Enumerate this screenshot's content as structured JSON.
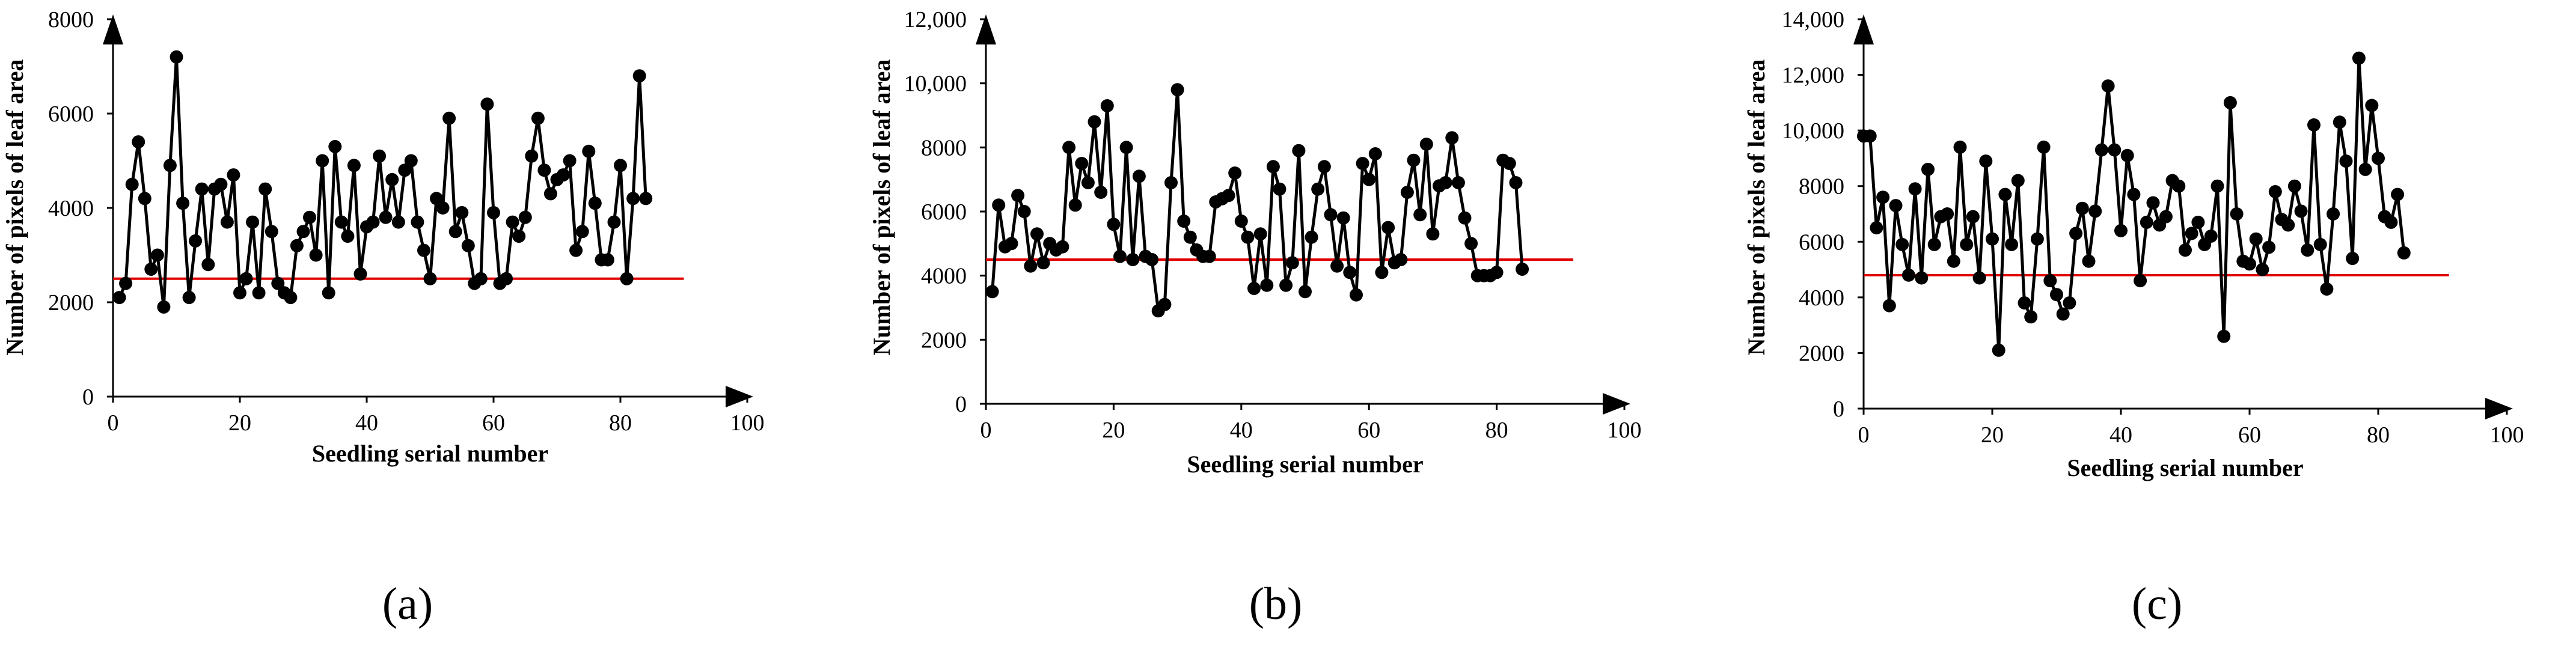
{
  "chart_data": [
    {
      "type": "line",
      "panel_label": "(a)",
      "xlabel": "Seedling serial number",
      "ylabel": "Number of pixels of leaf area",
      "xlim": [
        0,
        100
      ],
      "ylim": [
        0,
        8000
      ],
      "x_ticks": [
        0,
        20,
        40,
        60,
        80,
        100
      ],
      "x_tick_labels": [
        "0",
        "20",
        "40",
        "60",
        "80",
        "100"
      ],
      "y_ticks": [
        0,
        2000,
        4000,
        6000,
        8000
      ],
      "y_tick_labels": [
        "0",
        "2000",
        "4000",
        "6000",
        "8000"
      ],
      "threshold": 2500,
      "threshold_x_end": 90,
      "threshold_color": "#e00000",
      "series": [
        {
          "name": "pixels",
          "color": "#000000",
          "x": [
            1,
            2,
            3,
            4,
            5,
            6,
            7,
            8,
            9,
            10,
            11,
            12,
            13,
            14,
            15,
            16,
            17,
            18,
            19,
            20,
            21,
            22,
            23,
            24,
            25,
            26,
            27,
            28,
            29,
            30,
            31,
            32,
            33,
            34,
            35,
            36,
            37,
            38,
            39,
            40,
            41,
            42,
            43,
            44,
            45,
            46,
            47,
            48,
            49,
            50,
            51,
            52,
            53,
            54,
            55,
            56,
            57,
            58,
            59,
            60,
            61,
            62,
            63,
            64,
            65,
            66,
            67,
            68,
            69,
            70,
            71,
            72,
            73,
            74,
            75,
            76,
            77,
            78,
            79,
            80,
            81,
            82,
            83,
            84
          ],
          "values": [
            2100,
            2400,
            4500,
            5400,
            4200,
            2700,
            3000,
            1900,
            4900,
            7200,
            4100,
            2100,
            3300,
            4400,
            2800,
            4400,
            4500,
            3700,
            4700,
            2200,
            2500,
            3700,
            2200,
            4400,
            3500,
            2400,
            2200,
            2100,
            3200,
            3500,
            3800,
            3000,
            5000,
            2200,
            5300,
            3700,
            3400,
            4900,
            2600,
            3600,
            3700,
            5100,
            3800,
            4600,
            3700,
            4800,
            5000,
            3700,
            3100,
            2500,
            4200,
            4000,
            5900,
            3500,
            3900,
            3200,
            2400,
            2500,
            6200,
            3900,
            2400,
            2500,
            3700,
            3400,
            3800,
            5100,
            5900,
            4800,
            4300,
            4600,
            4700,
            5000,
            3100,
            3500,
            5200,
            4100,
            2900,
            2900,
            3700,
            4900,
            2500,
            4200,
            6800,
            4200
          ]
        }
      ]
    },
    {
      "type": "line",
      "panel_label": "(b)",
      "xlabel": "Seedling serial number",
      "ylabel": "Number of pixels of leaf area",
      "xlim": [
        0,
        100
      ],
      "ylim": [
        0,
        12000
      ],
      "x_ticks": [
        0,
        20,
        40,
        60,
        80,
        100
      ],
      "x_tick_labels": [
        "0",
        "20",
        "40",
        "60",
        "80",
        "100"
      ],
      "y_ticks": [
        0,
        2000,
        4000,
        6000,
        8000,
        10000,
        12000
      ],
      "y_tick_labels": [
        "0",
        "2000",
        "4000",
        "6000",
        "8000",
        "10,000",
        "12,000"
      ],
      "threshold": 4500,
      "threshold_x_end": 92,
      "threshold_color": "#e00000",
      "series": [
        {
          "name": "pixels",
          "color": "#000000",
          "x": [
            1,
            2,
            3,
            4,
            5,
            6,
            7,
            8,
            9,
            10,
            11,
            12,
            13,
            14,
            15,
            16,
            17,
            18,
            19,
            20,
            21,
            22,
            23,
            24,
            25,
            26,
            27,
            28,
            29,
            30,
            31,
            32,
            33,
            34,
            35,
            36,
            37,
            38,
            39,
            40,
            41,
            42,
            43,
            44,
            45,
            46,
            47,
            48,
            49,
            50,
            51,
            52,
            53,
            54,
            55,
            56,
            57,
            58,
            59,
            60,
            61,
            62,
            63,
            64,
            65,
            66,
            67,
            68,
            69,
            70,
            71,
            72,
            73,
            74,
            75,
            76,
            77,
            78,
            79,
            80,
            81,
            82,
            83,
            84
          ],
          "values": [
            3500,
            6200,
            4900,
            5000,
            6500,
            6000,
            4300,
            5300,
            4400,
            5000,
            4800,
            4900,
            8000,
            6200,
            7500,
            6900,
            8800,
            6600,
            9300,
            5600,
            4600,
            8000,
            4500,
            7100,
            4600,
            4500,
            2900,
            3100,
            6900,
            9800,
            5700,
            5200,
            4800,
            4600,
            4600,
            6300,
            6400,
            6500,
            7200,
            5700,
            5200,
            3600,
            5300,
            3700,
            7400,
            6700,
            3700,
            4400,
            7900,
            3500,
            5200,
            6700,
            7400,
            5900,
            4300,
            5800,
            4100,
            3400,
            7500,
            7000,
            7800,
            4100,
            5500,
            4400,
            4500,
            6600,
            7600,
            5900,
            8100,
            5300,
            6800,
            6900,
            8300,
            6900,
            5800,
            5000,
            4000,
            4000,
            4000,
            4100,
            7600,
            7500,
            6900,
            4200
          ]
        }
      ]
    },
    {
      "type": "line",
      "panel_label": "(c)",
      "xlabel": "Seedling serial number",
      "ylabel": "Number of pixels of leaf area",
      "xlim": [
        0,
        100
      ],
      "ylim": [
        0,
        14000
      ],
      "x_ticks": [
        0,
        20,
        40,
        60,
        80,
        100
      ],
      "x_tick_labels": [
        "0",
        "20",
        "40",
        "60",
        "80",
        "100"
      ],
      "y_ticks": [
        0,
        2000,
        4000,
        6000,
        8000,
        10000,
        12000,
        14000
      ],
      "y_tick_labels": [
        "0",
        "2000",
        "4000",
        "6000",
        "8000",
        "10,000",
        "12,000",
        "14,000"
      ],
      "threshold": 4800,
      "threshold_x_end": 91,
      "threshold_color": "#e00000",
      "series": [
        {
          "name": "pixels",
          "color": "#000000",
          "x": [
            0,
            1,
            2,
            3,
            4,
            5,
            6,
            7,
            8,
            9,
            10,
            11,
            12,
            13,
            14,
            15,
            16,
            17,
            18,
            19,
            20,
            21,
            22,
            23,
            24,
            25,
            26,
            27,
            28,
            29,
            30,
            31,
            32,
            33,
            34,
            35,
            36,
            37,
            38,
            39,
            40,
            41,
            42,
            43,
            44,
            45,
            46,
            47,
            48,
            49,
            50,
            51,
            52,
            53,
            54,
            55,
            56,
            57,
            58,
            59,
            60,
            61,
            62,
            63,
            64,
            65,
            66,
            67,
            68,
            69,
            70,
            71,
            72,
            73,
            74,
            75,
            76,
            77,
            78,
            79,
            80,
            81,
            82,
            83,
            84
          ],
          "values": [
            9800,
            9800,
            6500,
            7600,
            3700,
            7300,
            5900,
            4800,
            7900,
            4700,
            8600,
            5900,
            6900,
            7000,
            5300,
            9400,
            5900,
            6900,
            4700,
            8900,
            6100,
            2100,
            7700,
            5900,
            8200,
            3800,
            3300,
            6100,
            9400,
            4600,
            4100,
            3400,
            3800,
            6300,
            7200,
            5300,
            7100,
            9300,
            11600,
            9300,
            6400,
            9100,
            7700,
            4600,
            6700,
            7400,
            6600,
            6900,
            8200,
            8000,
            5700,
            6300,
            6700,
            5900,
            6200,
            8000,
            2600,
            11000,
            7000,
            5300,
            5200,
            6100,
            5000,
            5800,
            7800,
            6800,
            6600,
            8000,
            7100,
            5700,
            10200,
            5900,
            4300,
            7000,
            10300,
            8900,
            5400,
            12600,
            8600,
            10900,
            9000,
            6900,
            6700,
            7700,
            5600
          ]
        }
      ]
    }
  ]
}
